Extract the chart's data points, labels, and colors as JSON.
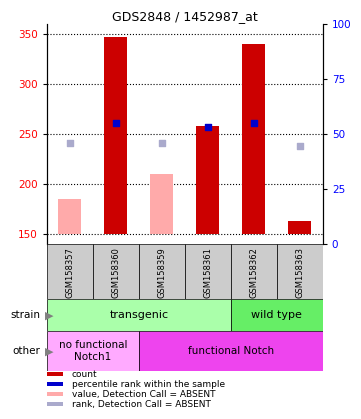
{
  "title": "GDS2848 / 1452987_at",
  "samples": [
    "GSM158357",
    "GSM158360",
    "GSM158359",
    "GSM158361",
    "GSM158362",
    "GSM158363"
  ],
  "ylim_left": [
    140,
    360
  ],
  "ylim_right": [
    0,
    100
  ],
  "yticks_left": [
    150,
    200,
    250,
    300,
    350
  ],
  "yticks_right": [
    0,
    25,
    50,
    75,
    100
  ],
  "bar_color": "#cc0000",
  "bar_absent_color": "#ffaaaa",
  "dot_color": "#0000cc",
  "dot_absent_color": "#aaaacc",
  "bars": {
    "GSM158357": {
      "value": null,
      "absent_value": 185,
      "rank": null,
      "absent_rank": 241
    },
    "GSM158360": {
      "value": 347,
      "absent_value": null,
      "rank": 261,
      "absent_rank": null
    },
    "GSM158359": {
      "value": null,
      "absent_value": 210,
      "rank": null,
      "absent_rank": 241
    },
    "GSM158361": {
      "value": 258,
      "absent_value": null,
      "rank": 257,
      "absent_rank": null
    },
    "GSM158362": {
      "value": 340,
      "absent_value": null,
      "rank": 261,
      "absent_rank": null
    },
    "GSM158363": {
      "value": 163,
      "absent_value": null,
      "rank": null,
      "absent_rank": 238
    }
  },
  "strain_groups": [
    {
      "label": "transgenic",
      "samples": [
        "GSM158357",
        "GSM158360",
        "GSM158359",
        "GSM158361"
      ],
      "color": "#aaffaa"
    },
    {
      "label": "wild type",
      "samples": [
        "GSM158362",
        "GSM158363"
      ],
      "color": "#66ee66"
    }
  ],
  "other_groups": [
    {
      "label": "no functional\nNotch1",
      "samples": [
        "GSM158357",
        "GSM158360"
      ],
      "color": "#ffaaff"
    },
    {
      "label": "functional Notch",
      "samples": [
        "GSM158359",
        "GSM158361",
        "GSM158362",
        "GSM158363"
      ],
      "color": "#ee44ee"
    }
  ],
  "bar_width": 0.5,
  "base_value": 150,
  "legend_items": [
    {
      "color": "#cc0000",
      "label": "count"
    },
    {
      "color": "#0000cc",
      "label": "percentile rank within the sample"
    },
    {
      "color": "#ffaaaa",
      "label": "value, Detection Call = ABSENT"
    },
    {
      "color": "#aaaacc",
      "label": "rank, Detection Call = ABSENT"
    }
  ],
  "xlabel_area_bg": "#cccccc",
  "left_label_strain": "strain",
  "left_label_other": "other"
}
